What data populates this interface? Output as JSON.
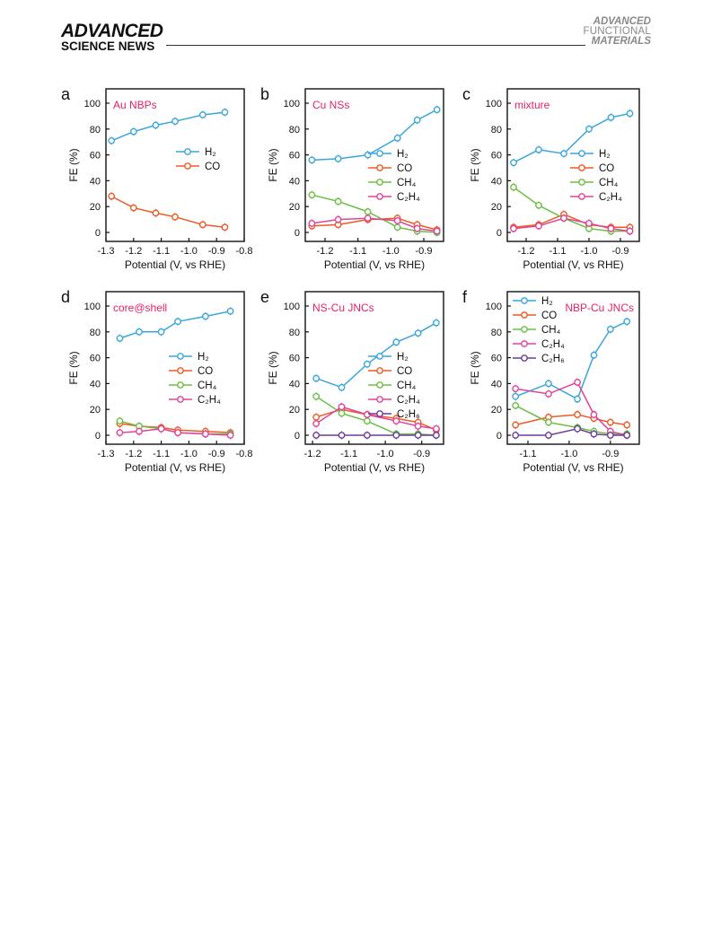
{
  "header": {
    "logo_line1": "ADVANCED",
    "logo_line2": "SCIENCE NEWS",
    "journal_line1": "ADVANCED",
    "journal_line2": "FUNCTIONAL",
    "journal_line3": "MATERIALS"
  },
  "colors": {
    "H2": "#3aa6dc",
    "CO": "#ee5a24",
    "CH4": "#6cbf45",
    "C2H4": "#e0449a",
    "C2H6": "#6a3d9a",
    "title": "#e6206a"
  },
  "chart_data": [
    {
      "panel": "a",
      "title": "Au NBPs",
      "type": "line",
      "xlabel": "Potential (V, vs RHE)",
      "ylabel": "FE (%)",
      "xlim": [
        -1.3,
        -0.8
      ],
      "ylim": [
        0,
        100
      ],
      "xticks": [
        "-1.3",
        "-1.2",
        "-1.1",
        "-1.0",
        "-0.9",
        "-0.8"
      ],
      "yticks": [
        "0",
        "20",
        "40",
        "60",
        "80",
        "100"
      ],
      "legend": "right",
      "series": [
        {
          "name": "H₂",
          "key": "H2",
          "x": [
            -1.28,
            -1.2,
            -1.12,
            -1.05,
            -0.95,
            -0.87
          ],
          "y": [
            71,
            78,
            83,
            86,
            91,
            93
          ]
        },
        {
          "name": "CO",
          "key": "CO",
          "x": [
            -1.28,
            -1.2,
            -1.12,
            -1.05,
            -0.95,
            -0.87
          ],
          "y": [
            28,
            19,
            15,
            12,
            6,
            4
          ]
        }
      ]
    },
    {
      "panel": "b",
      "title": "Cu NSs",
      "type": "line",
      "xlabel": "Potential (V, vs RHE)",
      "ylabel": "FE (%)",
      "xlim": [
        -1.26,
        -0.84
      ],
      "ylim": [
        0,
        100
      ],
      "xticks": [
        "-1.2",
        "-1.1",
        "-1.0",
        "-0.9"
      ],
      "yticks": [
        "0",
        "20",
        "40",
        "60",
        "80",
        "100"
      ],
      "legend": "right",
      "series": [
        {
          "name": "H₂",
          "key": "H2",
          "x": [
            -1.24,
            -1.16,
            -1.07,
            -0.98,
            -0.92,
            -0.86
          ],
          "y": [
            56,
            57,
            60,
            73,
            87,
            95
          ]
        },
        {
          "name": "CO",
          "key": "CO",
          "x": [
            -1.24,
            -1.16,
            -1.07,
            -0.98,
            -0.92,
            -0.86
          ],
          "y": [
            5,
            6,
            10,
            11,
            6,
            2
          ]
        },
        {
          "name": "CH₄",
          "key": "CH4",
          "x": [
            -1.24,
            -1.16,
            -1.07,
            -0.98,
            -0.92,
            -0.86
          ],
          "y": [
            29,
            24,
            16,
            4,
            1,
            0
          ]
        },
        {
          "name": "C₂H₄",
          "key": "C2H4",
          "x": [
            -1.24,
            -1.16,
            -1.07,
            -0.98,
            -0.92,
            -0.86
          ],
          "y": [
            7,
            10,
            11,
            9,
            3,
            1
          ]
        }
      ]
    },
    {
      "panel": "c",
      "title": "mixture",
      "type": "line",
      "xlabel": "Potential (V, vs RHE)",
      "ylabel": "FE (%)",
      "xlim": [
        -1.26,
        -0.84
      ],
      "ylim": [
        0,
        100
      ],
      "xticks": [
        "-1.2",
        "-1.1",
        "-1.0",
        "-0.9"
      ],
      "yticks": [
        "0",
        "20",
        "40",
        "60",
        "80",
        "100"
      ],
      "legend": "right",
      "series": [
        {
          "name": "H₂",
          "key": "H2",
          "x": [
            -1.24,
            -1.16,
            -1.08,
            -1.0,
            -0.93,
            -0.87
          ],
          "y": [
            54,
            64,
            61,
            80,
            89,
            92
          ]
        },
        {
          "name": "CO",
          "key": "CO",
          "x": [
            -1.24,
            -1.16,
            -1.08,
            -1.0,
            -0.93,
            -0.87
          ],
          "y": [
            4,
            6,
            14,
            6,
            4,
            4
          ]
        },
        {
          "name": "CH₄",
          "key": "CH4",
          "x": [
            -1.24,
            -1.16,
            -1.08,
            -1.0,
            -0.93,
            -0.87
          ],
          "y": [
            35,
            21,
            11,
            3,
            1,
            1
          ]
        },
        {
          "name": "C₂H₄",
          "key": "C2H4",
          "x": [
            -1.24,
            -1.16,
            -1.08,
            -1.0,
            -0.93,
            -0.87
          ],
          "y": [
            3,
            5,
            11,
            7,
            3,
            1
          ]
        }
      ]
    },
    {
      "panel": "d",
      "title": "core@shell",
      "type": "line",
      "xlabel": "Potential (V, vs RHE)",
      "ylabel": "FE (%)",
      "xlim": [
        -1.3,
        -0.8
      ],
      "ylim": [
        0,
        100
      ],
      "xticks": [
        "-1.3",
        "-1.2",
        "-1.1",
        "-1.0",
        "-0.9",
        "-0.8"
      ],
      "yticks": [
        "0",
        "20",
        "40",
        "60",
        "80",
        "100"
      ],
      "legend": "right",
      "series": [
        {
          "name": "H₂",
          "key": "H2",
          "x": [
            -1.25,
            -1.18,
            -1.1,
            -1.04,
            -0.94,
            -0.85
          ],
          "y": [
            75,
            80,
            80,
            88,
            92,
            96
          ]
        },
        {
          "name": "CO",
          "key": "CO",
          "x": [
            -1.25,
            -1.18,
            -1.1,
            -1.04,
            -0.94,
            -0.85
          ],
          "y": [
            9,
            7,
            6,
            4,
            3,
            2
          ]
        },
        {
          "name": "CH₄",
          "key": "CH4",
          "x": [
            -1.25,
            -1.18,
            -1.1,
            -1.04,
            -0.94,
            -0.85
          ],
          "y": [
            11,
            7,
            5,
            2,
            1,
            1
          ]
        },
        {
          "name": "C₂H₄",
          "key": "C2H4",
          "x": [
            -1.25,
            -1.18,
            -1.1,
            -1.04,
            -0.94,
            -0.85
          ],
          "y": [
            2,
            3,
            5,
            2,
            1,
            0
          ]
        }
      ]
    },
    {
      "panel": "e",
      "title": "NS-Cu JNCs",
      "type": "line",
      "xlabel": "Potential (V, vs RHE)",
      "ylabel": "FE (%)",
      "xlim": [
        -1.22,
        -0.84
      ],
      "ylim": [
        0,
        100
      ],
      "xticks": [
        "-1.2",
        "-1.1",
        "-1.0",
        "-0.9"
      ],
      "yticks": [
        "0",
        "20",
        "40",
        "60",
        "80",
        "100"
      ],
      "legend": "right",
      "series": [
        {
          "name": "H₂",
          "key": "H2",
          "x": [
            -1.19,
            -1.12,
            -1.05,
            -0.97,
            -0.91,
            -0.86
          ],
          "y": [
            44,
            37,
            55,
            72,
            79,
            87
          ]
        },
        {
          "name": "CO",
          "key": "CO",
          "x": [
            -1.19,
            -1.12,
            -1.05,
            -0.97,
            -0.91,
            -0.86
          ],
          "y": [
            14,
            20,
            16,
            13,
            10,
            4
          ]
        },
        {
          "name": "CH₄",
          "key": "CH4",
          "x": [
            -1.19,
            -1.12,
            -1.05,
            -0.97,
            -0.91,
            -0.86
          ],
          "y": [
            30,
            17,
            11,
            1,
            1,
            0
          ]
        },
        {
          "name": "C₂H₄",
          "key": "C2H4",
          "x": [
            -1.19,
            -1.12,
            -1.05,
            -0.97,
            -0.91,
            -0.86
          ],
          "y": [
            9,
            22,
            16,
            11,
            7,
            5
          ]
        },
        {
          "name": "C₂H₆",
          "key": "C2H6",
          "x": [
            -1.19,
            -1.12,
            -1.05,
            -0.97,
            -0.91,
            -0.86
          ],
          "y": [
            0,
            0,
            0,
            0,
            0,
            0
          ]
        }
      ]
    },
    {
      "panel": "f",
      "title": "NBP-Cu JNCs",
      "type": "line",
      "xlabel": "Potential (V, vs RHE)",
      "ylabel": "FE (%)",
      "xlim": [
        -1.15,
        -0.83
      ],
      "ylim": [
        0,
        100
      ],
      "xticks": [
        "-1.1",
        "-1.0",
        "-0.9"
      ],
      "yticks": [
        "0",
        "20",
        "40",
        "60",
        "80",
        "100"
      ],
      "legend": "left",
      "series": [
        {
          "name": "H₂",
          "key": "H2",
          "x": [
            -1.13,
            -1.05,
            -0.98,
            -0.94,
            -0.9,
            -0.86
          ],
          "y": [
            30,
            40,
            28,
            62,
            82,
            88
          ]
        },
        {
          "name": "CO",
          "key": "CO",
          "x": [
            -1.13,
            -1.05,
            -0.98,
            -0.94,
            -0.9,
            -0.86
          ],
          "y": [
            8,
            14,
            16,
            13,
            10,
            8
          ]
        },
        {
          "name": "CH₄",
          "key": "CH4",
          "x": [
            -1.13,
            -1.05,
            -0.98,
            -0.94,
            -0.9,
            -0.86
          ],
          "y": [
            23,
            10,
            6,
            3,
            1,
            1
          ]
        },
        {
          "name": "C₂H₄",
          "key": "C2H4",
          "x": [
            -1.13,
            -1.05,
            -0.98,
            -0.94,
            -0.9,
            -0.86
          ],
          "y": [
            36,
            32,
            41,
            16,
            3,
            0
          ]
        },
        {
          "name": "C₂H₆",
          "key": "C2H6",
          "x": [
            -1.13,
            -1.05,
            -0.98,
            -0.94,
            -0.9,
            -0.86
          ],
          "y": [
            0,
            0,
            5,
            1,
            0,
            0
          ]
        }
      ]
    }
  ]
}
